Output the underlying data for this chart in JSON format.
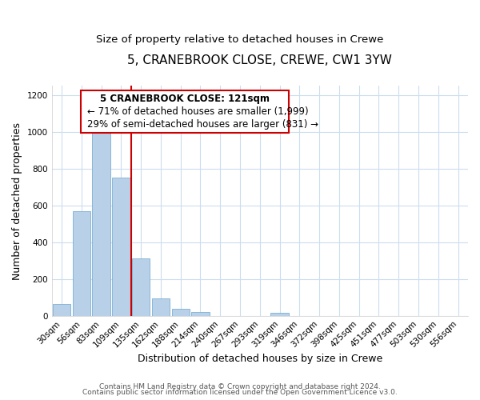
{
  "title": "5, CRANEBROOK CLOSE, CREWE, CW1 3YW",
  "subtitle": "Size of property relative to detached houses in Crewe",
  "xlabel": "Distribution of detached houses by size in Crewe",
  "ylabel": "Number of detached properties",
  "bar_labels": [
    "30sqm",
    "56sqm",
    "83sqm",
    "109sqm",
    "135sqm",
    "162sqm",
    "188sqm",
    "214sqm",
    "240sqm",
    "267sqm",
    "293sqm",
    "319sqm",
    "346sqm",
    "372sqm",
    "398sqm",
    "425sqm",
    "451sqm",
    "477sqm",
    "503sqm",
    "530sqm",
    "556sqm"
  ],
  "bar_values": [
    65,
    570,
    1000,
    750,
    310,
    95,
    40,
    20,
    0,
    0,
    0,
    15,
    0,
    0,
    0,
    0,
    0,
    0,
    0,
    0,
    0
  ],
  "bar_color": "#b8d0e8",
  "bar_edge_color": "#7bafd4",
  "vline_x": 3.5,
  "vline_color": "#cc0000",
  "annotation_line1": "5 CRANEBROOK CLOSE: 121sqm",
  "annotation_line2": "← 71% of detached houses are smaller (1,999)",
  "annotation_line3": "29% of semi-detached houses are larger (831) →",
  "annotation_box_color": "#ffffff",
  "annotation_box_edge_color": "#cc0000",
  "ylim": [
    0,
    1250
  ],
  "yticks": [
    0,
    200,
    400,
    600,
    800,
    1000,
    1200
  ],
  "footer_line1": "Contains HM Land Registry data © Crown copyright and database right 2024.",
  "footer_line2": "Contains public sector information licensed under the Open Government Licence v3.0.",
  "background_color": "#ffffff",
  "grid_color": "#ccddee",
  "title_fontsize": 11,
  "subtitle_fontsize": 9.5,
  "axis_label_fontsize": 9,
  "tick_fontsize": 7.5,
  "annotation_fontsize": 8.5,
  "footer_fontsize": 6.5
}
